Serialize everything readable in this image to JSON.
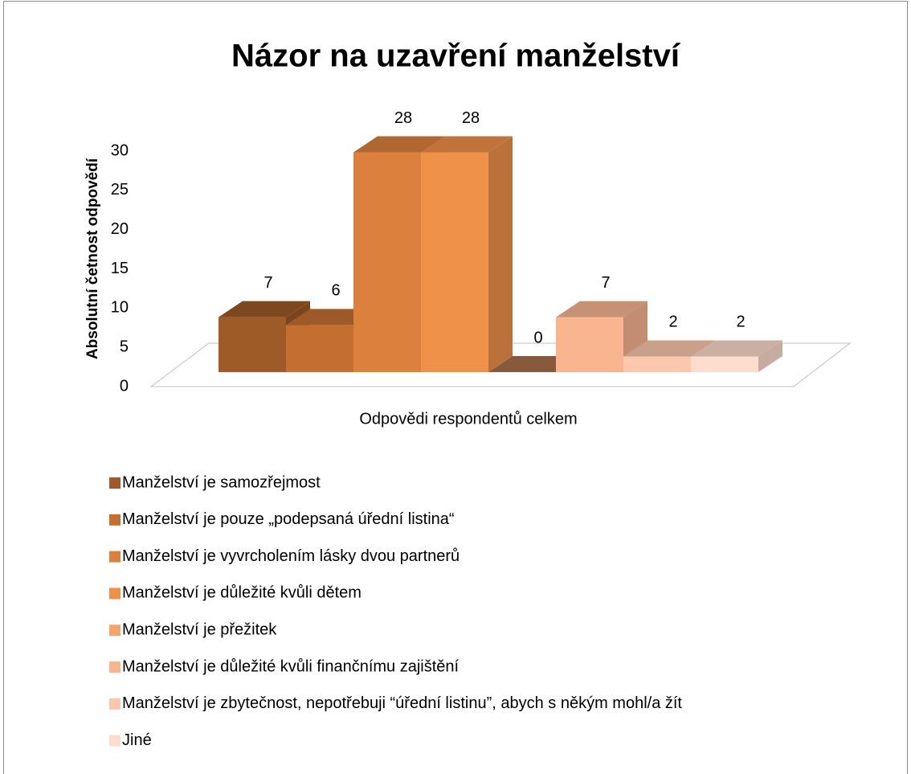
{
  "chart_data": {
    "type": "bar3d",
    "title": "Názor na uzavření manželství",
    "y_label": "Absolutní četnost odpovědí",
    "categories": [
      "Odpovědi respondentů celkem"
    ],
    "series": [
      {
        "name": "Manželství je samozřejmost",
        "color": "#9e5a27",
        "values": [
          7
        ]
      },
      {
        "name": "Manželství je pouze „podepsaná úřední listina“",
        "color": "#c46f31",
        "values": [
          6
        ]
      },
      {
        "name": "Manželství je vyvrcholením lásky dvou partnerů",
        "color": "#dc813d",
        "values": [
          28
        ]
      },
      {
        "name": "Manželství je důležité kvůli dětem",
        "color": "#f0914a",
        "values": [
          28
        ]
      },
      {
        "name": "Manželství je přežitek",
        "color": "#f5a46c",
        "values": [
          0
        ]
      },
      {
        "name": "Manželství je důležité kvůli finančnímu zajištění",
        "color": "#f9b590",
        "values": [
          7
        ]
      },
      {
        "name": "Manželství je zbytečnost, nepotřebuji “úřední listinu”, abych s někým mohl/a žít",
        "color": "#fbc8ad",
        "values": [
          2
        ]
      },
      {
        "name": "Jiné",
        "color": "#fcdccc",
        "values": [
          2
        ]
      }
    ],
    "ylim": [
      0,
      30
    ],
    "yticks": [
      0,
      5,
      10,
      15,
      20,
      25,
      30
    ]
  }
}
